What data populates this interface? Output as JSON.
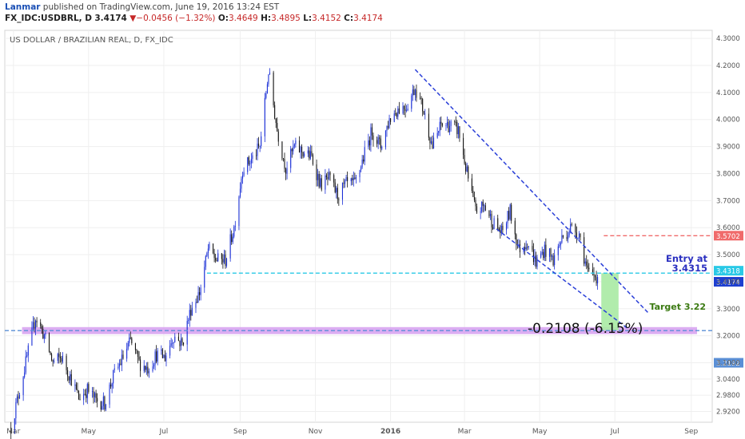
{
  "header": {
    "user": "Lanmar",
    "published": " published on TradingView.com, June 19, 2016 13:24 EST",
    "symbol": "FX_IDC:USDBRL, D",
    "last": "3.4174",
    "change": "−0.0456 (−1.32%)",
    "open_label": "O:",
    "open": "3.4649",
    "high_label": "H:",
    "high": "3.4895",
    "low_label": "L:",
    "low": "3.4152",
    "close_label": "C:",
    "close": "3.4174"
  },
  "chart_data": {
    "type": "candlestick",
    "title": "US DOLLAR / BRAZILIAN REAL, D, FX_IDC",
    "x_ticks": [
      "Mar",
      "May",
      "Jul",
      "Sep",
      "Nov",
      "2016",
      "Mar",
      "May",
      "Jul",
      "Sep"
    ],
    "y_ticks": [
      "4.3000",
      "4.2000",
      "4.1000",
      "4.0000",
      "3.9000",
      "3.8000",
      "3.7000",
      "3.6000",
      "3.5000",
      "3.4000",
      "3.3000",
      "3.2000",
      "3.1000",
      "3.0400",
      "2.9800",
      "2.9200"
    ],
    "ylim": [
      2.88,
      4.33
    ],
    "price_path": [
      [
        "2015-02-27",
        2.86
      ],
      [
        "2015-03-05",
        2.98
      ],
      [
        "2015-03-12",
        3.12
      ],
      [
        "2015-03-19",
        3.27
      ],
      [
        "2015-03-26",
        3.2
      ],
      [
        "2015-04-02",
        3.1
      ],
      [
        "2015-04-09",
        3.12
      ],
      [
        "2015-04-16",
        3.05
      ],
      [
        "2015-04-23",
        2.97
      ],
      [
        "2015-04-30",
        3.0
      ],
      [
        "2015-05-07",
        2.96
      ],
      [
        "2015-05-14",
        2.95
      ],
      [
        "2015-05-21",
        3.05
      ],
      [
        "2015-05-28",
        3.11
      ],
      [
        "2015-06-04",
        3.18
      ],
      [
        "2015-06-11",
        3.1
      ],
      [
        "2015-06-18",
        3.08
      ],
      [
        "2015-06-25",
        3.13
      ],
      [
        "2015-07-02",
        3.12
      ],
      [
        "2015-07-09",
        3.2
      ],
      [
        "2015-07-16",
        3.17
      ],
      [
        "2015-07-23",
        3.3
      ],
      [
        "2015-07-30",
        3.36
      ],
      [
        "2015-08-06",
        3.52
      ],
      [
        "2015-08-13",
        3.48
      ],
      [
        "2015-08-20",
        3.48
      ],
      [
        "2015-08-27",
        3.6
      ],
      [
        "2015-09-03",
        3.82
      ],
      [
        "2015-09-10",
        3.85
      ],
      [
        "2015-09-17",
        3.9
      ],
      [
        "2015-09-24",
        4.18
      ],
      [
        "2015-10-01",
        3.96
      ],
      [
        "2015-10-08",
        3.82
      ],
      [
        "2015-10-15",
        3.9
      ],
      [
        "2015-10-22",
        3.88
      ],
      [
        "2015-10-29",
        3.86
      ],
      [
        "2015-11-05",
        3.76
      ],
      [
        "2015-11-12",
        3.78
      ],
      [
        "2015-11-19",
        3.72
      ],
      [
        "2015-11-26",
        3.76
      ],
      [
        "2015-12-03",
        3.76
      ],
      [
        "2015-12-10",
        3.86
      ],
      [
        "2015-12-17",
        3.96
      ],
      [
        "2015-12-24",
        3.9
      ],
      [
        "2015-12-31",
        4.0
      ],
      [
        "2016-01-07",
        4.04
      ],
      [
        "2016-01-14",
        4.05
      ],
      [
        "2016-01-21",
        4.12
      ],
      [
        "2016-01-28",
        4.03
      ],
      [
        "2016-02-04",
        3.9
      ],
      [
        "2016-02-11",
        3.98
      ],
      [
        "2016-02-18",
        3.98
      ],
      [
        "2016-02-25",
        3.96
      ],
      [
        "2016-03-03",
        3.8
      ],
      [
        "2016-03-10",
        3.66
      ],
      [
        "2016-03-17",
        3.68
      ],
      [
        "2016-03-24",
        3.62
      ],
      [
        "2016-03-31",
        3.58
      ],
      [
        "2016-04-07",
        3.66
      ],
      [
        "2016-04-14",
        3.52
      ],
      [
        "2016-04-21",
        3.55
      ],
      [
        "2016-04-28",
        3.47
      ],
      [
        "2016-05-05",
        3.52
      ],
      [
        "2016-05-12",
        3.48
      ],
      [
        "2016-05-19",
        3.56
      ],
      [
        "2016-05-26",
        3.6
      ],
      [
        "2016-06-02",
        3.58
      ],
      [
        "2016-06-09",
        3.43
      ],
      [
        "2016-06-16",
        3.42
      ],
      [
        "2016-06-17",
        3.4174
      ]
    ],
    "levels": [
      {
        "name": "level-3.5702",
        "value": 3.5702,
        "color": "#f06b6b",
        "style": "dashed",
        "label": "3.5702"
      },
      {
        "name": "level-3.4318",
        "value": 3.4318,
        "color": "#29c9e6",
        "style": "dashed",
        "label": "3.4318"
      },
      {
        "name": "level-3.4174",
        "value": 3.4174,
        "color": "#1e3fd0",
        "style": "tag",
        "label": "3.4174"
      },
      {
        "name": "level-3.2192",
        "value": 3.2192,
        "color": "#5a8fd6",
        "style": "dashed",
        "label": "3.2192"
      }
    ],
    "target_band": [
      3.206,
      3.232
    ],
    "target_band_color": "#d69ff0",
    "channel": {
      "upper": [
        [
          "2016-01-21",
          4.185
        ],
        [
          "2016-07-28",
          3.285
        ]
      ],
      "lower": [
        [
          "2016-03-27",
          3.595
        ],
        [
          "2016-07-12",
          3.225
        ]
      ],
      "color": "#2a3fd8"
    },
    "trade_box": {
      "start": "2016-06-20",
      "end": "2016-07-04",
      "top": 3.4315,
      "bottom": 3.22,
      "color": "#a9eaa3"
    },
    "annotations": {
      "entry_line1": "Entry at",
      "entry_line2": "3.4315",
      "target": "Target 3.22",
      "change": "-0.2108 (-6.15%)"
    },
    "colors": {
      "up": "#1a2fd6",
      "down": "#111111",
      "entry": "#2a2fc0",
      "target": "#3b7a12"
    },
    "grid": true
  }
}
